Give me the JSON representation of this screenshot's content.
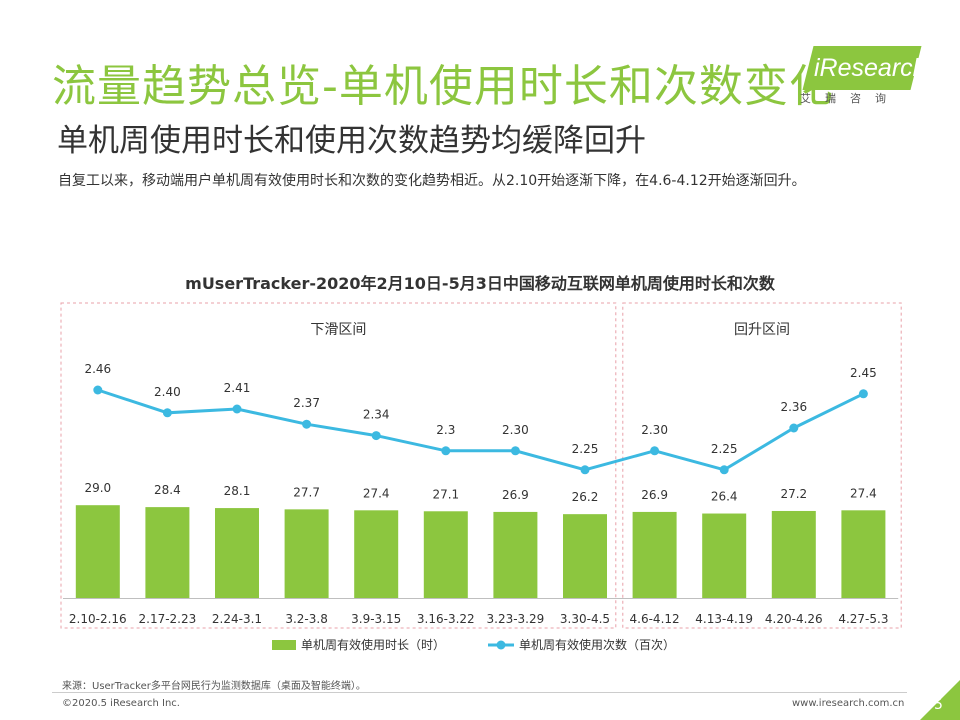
{
  "header": {
    "title": "流量趋势总览-单机使用时长和次数变化",
    "logo_text": "iResearch",
    "logo_cn": "艾瑞咨询",
    "subtitle": "单机周使用时长和使用次数趋势均缓降回升",
    "description": "自复工以来，移动端用户单机周有效使用时长和次数的变化趋势相近。从2.10开始逐渐下降，在4.6-4.12开始逐渐回升。"
  },
  "colors": {
    "title_green": "#8cc63f",
    "bar_green": "#8cc63f",
    "line_blue": "#3cb9e1",
    "region_border": "#e8a0a8"
  },
  "chart_data": {
    "type": "bar+line",
    "title": "mUserTracker-2020年2月10日-5月3日中国移动互联网单机周使用时长和次数",
    "categories": [
      "2.10-2.16",
      "2.17-2.23",
      "2.24-3.1",
      "3.2-3.8",
      "3.9-3.15",
      "3.16-3.22",
      "3.23-3.29",
      "3.30-4.5",
      "4.6-4.12",
      "4.13-4.19",
      "4.20-4.26",
      "4.27-5.3"
    ],
    "bar_labels": [
      "29.0",
      "28.4",
      "28.1",
      "27.7",
      "27.4",
      "27.1",
      "26.9",
      "26.2",
      "26.9",
      "26.4",
      "27.2",
      "27.4"
    ],
    "line_labels": [
      "2.46",
      "2.40",
      "2.41",
      "2.37",
      "2.34",
      "2.3",
      "2.30",
      "2.25",
      "2.30",
      "2.25",
      "2.36",
      "2.45"
    ],
    "series": [
      {
        "name": "单机周有效使用时长（时）",
        "type": "bar",
        "values": [
          29.0,
          28.4,
          28.1,
          27.7,
          27.4,
          27.1,
          26.9,
          26.2,
          26.9,
          26.4,
          27.2,
          27.4
        ]
      },
      {
        "name": "单机周有效使用次数（百次）",
        "type": "line",
        "values": [
          2.46,
          2.4,
          2.41,
          2.37,
          2.34,
          2.3,
          2.3,
          2.25,
          2.3,
          2.25,
          2.36,
          2.45
        ]
      }
    ],
    "regions": [
      {
        "label": "下滑区间",
        "start": "2.10-2.16",
        "end": "3.30-4.5"
      },
      {
        "label": "回升区间",
        "start": "4.6-4.12",
        "end": "4.27-5.3"
      }
    ],
    "legend_position": "bottom"
  },
  "footer": {
    "source": "来源：UserTracker多平台网民行为监测数据库（桌面及智能终端）。",
    "copyright": "©2020.5 iResearch Inc.",
    "website": "www.iresearch.com.cn",
    "page_number": "5"
  }
}
